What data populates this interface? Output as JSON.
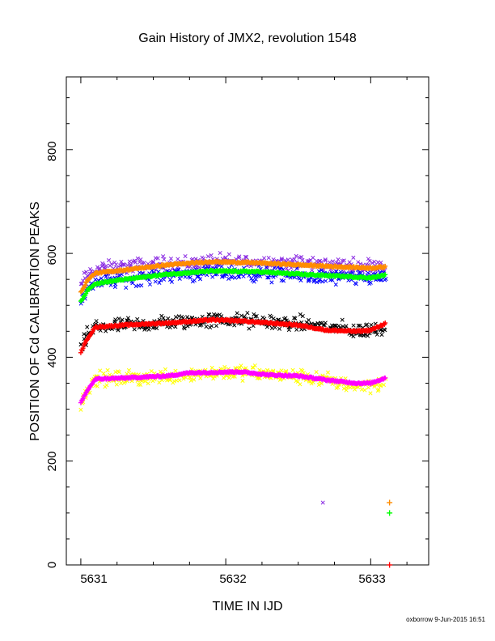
{
  "chart_data": {
    "type": "scatter",
    "title": "Gain History of JMX2, revolution 1548",
    "xlabel": "TIME IN IJD",
    "ylabel": "POSITION OF Cd CALIBRATION PEAKS",
    "xlim": [
      5630.9,
      5633.4
    ],
    "ylim": [
      0,
      940
    ],
    "x_ticks": [
      "5631",
      "5632",
      "5633"
    ],
    "y_ticks": [
      "0",
      "200",
      "400",
      "600",
      "800"
    ],
    "grid": false,
    "legend": "none",
    "series": [
      {
        "marker": "x",
        "color": "#8a2be2",
        "scatter": "noisy",
        "spread": 12,
        "points": [
          [
            5631.0,
            535
          ],
          [
            5631.05,
            560
          ],
          [
            5631.1,
            568
          ],
          [
            5631.3,
            574
          ],
          [
            5631.6,
            580
          ],
          [
            5632.0,
            584
          ],
          [
            5632.3,
            583
          ],
          [
            5632.6,
            580
          ],
          [
            5632.9,
            575
          ],
          [
            5633.1,
            578
          ]
        ],
        "outlier": [
          5632.67,
          120
        ]
      },
      {
        "marker": "x",
        "color": "#0000ff",
        "scatter": "noisy",
        "spread": 12,
        "points": [
          [
            5631.0,
            510
          ],
          [
            5631.05,
            535
          ],
          [
            5631.1,
            545
          ],
          [
            5631.3,
            550
          ],
          [
            5631.6,
            560
          ],
          [
            5632.0,
            563
          ],
          [
            5632.3,
            560
          ],
          [
            5632.6,
            555
          ],
          [
            5632.9,
            552
          ],
          [
            5633.1,
            555
          ]
        ]
      },
      {
        "marker": "x",
        "color": "#000000",
        "scatter": "noisy",
        "spread": 12,
        "points": [
          [
            5631.0,
            410
          ],
          [
            5631.05,
            445
          ],
          [
            5631.1,
            458
          ],
          [
            5631.4,
            462
          ],
          [
            5631.8,
            470
          ],
          [
            5632.0,
            472
          ],
          [
            5632.3,
            468
          ],
          [
            5632.6,
            462
          ],
          [
            5632.9,
            450
          ],
          [
            5633.1,
            455
          ]
        ]
      },
      {
        "marker": "x",
        "color": "#ffff00",
        "scatter": "noisy",
        "spread": 12,
        "points": [
          [
            5631.0,
            310
          ],
          [
            5631.05,
            340
          ],
          [
            5631.1,
            358
          ],
          [
            5631.4,
            360
          ],
          [
            5631.8,
            368
          ],
          [
            5632.0,
            372
          ],
          [
            5632.3,
            367
          ],
          [
            5632.6,
            360
          ],
          [
            5632.9,
            345
          ],
          [
            5633.1,
            350
          ]
        ]
      },
      {
        "marker": "+",
        "color": "#ff8c00",
        "scatter": "smooth",
        "points": [
          [
            5631.0,
            525
          ],
          [
            5631.05,
            550
          ],
          [
            5631.1,
            562
          ],
          [
            5631.3,
            568
          ],
          [
            5631.6,
            578
          ],
          [
            5631.9,
            584
          ],
          [
            5632.2,
            582
          ],
          [
            5632.5,
            578
          ],
          [
            5632.8,
            574
          ],
          [
            5633.0,
            572
          ],
          [
            5633.1,
            574
          ]
        ],
        "outlier": [
          5633.13,
          120
        ]
      },
      {
        "marker": "+",
        "color": "#00ff00",
        "scatter": "smooth",
        "points": [
          [
            5631.0,
            508
          ],
          [
            5631.05,
            530
          ],
          [
            5631.1,
            542
          ],
          [
            5631.3,
            550
          ],
          [
            5631.6,
            560
          ],
          [
            5631.9,
            566
          ],
          [
            5632.2,
            565
          ],
          [
            5632.5,
            560
          ],
          [
            5632.8,
            556
          ],
          [
            5633.0,
            553
          ],
          [
            5633.1,
            558
          ]
        ],
        "outlier": [
          5633.13,
          100
        ]
      },
      {
        "marker": "+",
        "color": "#ff0000",
        "scatter": "smooth",
        "points": [
          [
            5631.0,
            410
          ],
          [
            5631.05,
            438
          ],
          [
            5631.1,
            458
          ],
          [
            5631.3,
            462
          ],
          [
            5631.6,
            466
          ],
          [
            5631.9,
            472
          ],
          [
            5632.1,
            470
          ],
          [
            5632.3,
            466
          ],
          [
            5632.5,
            462
          ],
          [
            5632.7,
            452
          ],
          [
            5632.9,
            450
          ],
          [
            5633.0,
            452
          ],
          [
            5633.1,
            465
          ]
        ],
        "outlier": [
          5633.13,
          0
        ]
      },
      {
        "marker": "+",
        "color": "#ff00ff",
        "scatter": "smooth",
        "points": [
          [
            5631.0,
            312
          ],
          [
            5631.05,
            338
          ],
          [
            5631.1,
            358
          ],
          [
            5631.3,
            360
          ],
          [
            5631.6,
            364
          ],
          [
            5631.75,
            370
          ],
          [
            5632.1,
            372
          ],
          [
            5632.3,
            366
          ],
          [
            5632.5,
            364
          ],
          [
            5632.7,
            356
          ],
          [
            5632.9,
            350
          ],
          [
            5633.0,
            350
          ],
          [
            5633.1,
            360
          ]
        ]
      }
    ]
  },
  "footer": {
    "credit": "oxborrow  9-Jun-2015 16:51"
  }
}
